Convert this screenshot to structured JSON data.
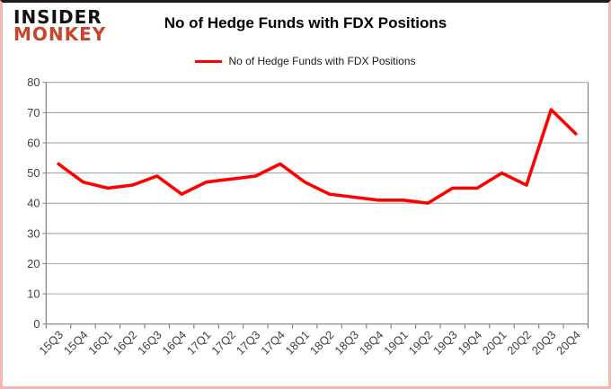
{
  "window": {
    "border_color_sides": "#f2b8b6",
    "border_color_top": "#1b1b1b"
  },
  "logo": {
    "line1": "INSIDER",
    "line2": "MONKEY",
    "line1_color": "#111111",
    "line2_color": "#c9442a"
  },
  "header": {
    "title": "No of Hedge Funds with FDX Positions"
  },
  "legend": {
    "label": "No of Hedge Funds with FDX Positions",
    "line_color": "#ff0000",
    "position": "top-center"
  },
  "chart_data": {
    "type": "line",
    "title": "No of Hedge Funds with FDX Positions",
    "categories": [
      "15Q3",
      "15Q4",
      "16Q1",
      "16Q2",
      "16Q3",
      "16Q4",
      "17Q1",
      "17Q2",
      "17Q3",
      "17Q4",
      "18Q1",
      "18Q2",
      "18Q3",
      "18Q4",
      "19Q1",
      "19Q2",
      "19Q3",
      "19Q4",
      "20Q1",
      "20Q2",
      "20Q3",
      "20Q4"
    ],
    "series": [
      {
        "name": "No of Hedge Funds with FDX Positions",
        "color": "#ff0000",
        "values": [
          53,
          47,
          45,
          46,
          49,
          43,
          47,
          48,
          49,
          53,
          47,
          43,
          42,
          41,
          41,
          40,
          45,
          45,
          50,
          46,
          71,
          63
        ]
      }
    ],
    "xlabel": "",
    "ylabel": "",
    "ylim": [
      0,
      80
    ],
    "yticks": [
      0,
      10,
      20,
      30,
      40,
      50,
      60,
      70,
      80
    ],
    "grid": true,
    "grid_color": "#9b9b9b",
    "axis_color": "#808080",
    "tick_label_color": "#3f3f3f",
    "legend_position": "top"
  }
}
